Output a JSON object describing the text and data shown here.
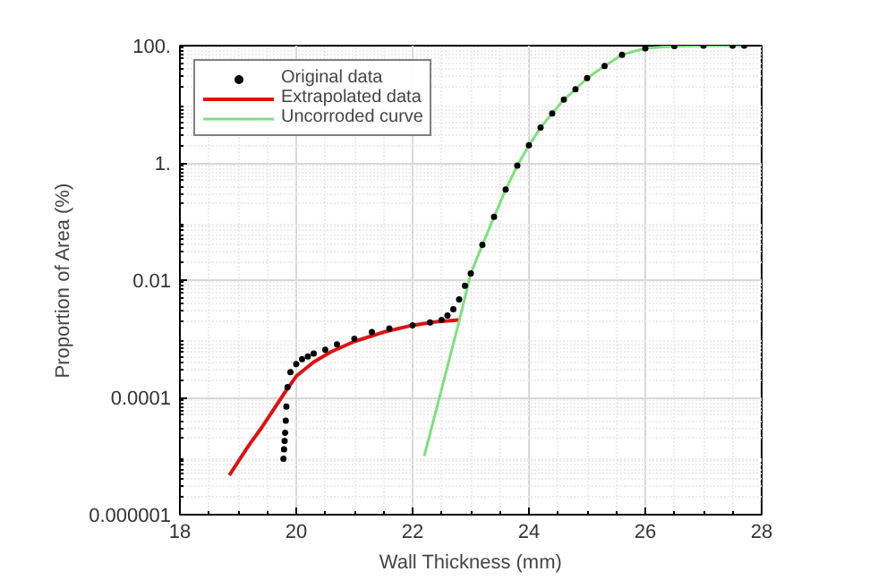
{
  "chart_data": {
    "type": "line",
    "xlabel": "Wall Thickness (mm)",
    "ylabel": "Proportion of Area (%)",
    "log": "y",
    "grid": true,
    "legend": "top left",
    "xlim": [
      18,
      28
    ],
    "xticks": [
      18,
      20,
      22,
      24,
      26,
      28
    ],
    "ylim": [
      1e-06,
      100
    ],
    "yticks": [
      {
        "value": 100,
        "label": "100."
      },
      {
        "value": 1,
        "label": "1."
      },
      0.01,
      0.0001,
      {
        "value": 1e-06,
        "label": "0.000001"
      }
    ],
    "series": [
      {
        "name": "Original data",
        "type": "scatter",
        "marker": "circle",
        "color": "#000000",
        "x": [
          19.78,
          19.79,
          19.8,
          19.81,
          19.82,
          19.83,
          19.85,
          19.9,
          20.0,
          20.1,
          20.2,
          20.3,
          20.5,
          20.7,
          21.0,
          21.3,
          21.6,
          22.0,
          22.3,
          22.5,
          22.6,
          22.7,
          22.8,
          22.9,
          23.0,
          23.2,
          23.4,
          23.6,
          23.8,
          24.0,
          24.2,
          24.4,
          24.6,
          24.8,
          25.0,
          25.3,
          25.6,
          26.0,
          26.5,
          27.0,
          27.5,
          27.7
        ],
        "values": [
          9e-06,
          1.3e-05,
          1.8e-05,
          2.5e-05,
          4e-05,
          7e-05,
          0.00015,
          0.00027,
          0.00037,
          0.00045,
          0.0005,
          0.00056,
          0.00065,
          0.0008,
          0.001,
          0.0013,
          0.0015,
          0.0017,
          0.0019,
          0.0021,
          0.0025,
          0.0032,
          0.0047,
          0.008,
          0.013,
          0.04,
          0.12,
          0.35,
          0.9,
          2,
          4,
          7,
          12,
          18,
          28,
          45,
          70,
          90,
          98,
          100,
          100,
          100
        ]
      },
      {
        "name": "Extrapolated data",
        "color": "#e01010",
        "x": [
          18.85,
          19.0,
          19.2,
          19.4,
          19.6,
          19.8,
          20.0,
          20.3,
          20.6,
          21.0,
          21.5,
          22.0,
          22.4,
          22.8
        ],
        "values": [
          4.7e-06,
          8e-06,
          1.6e-05,
          3e-05,
          6e-05,
          0.00012,
          0.00023,
          0.0004,
          0.0006,
          0.0009,
          0.0013,
          0.0017,
          0.00195,
          0.0021
        ]
      },
      {
        "name": "Uncorroded curve",
        "color": "#7ee07e",
        "x": [
          22.2,
          22.5,
          22.8,
          23.0,
          23.2,
          23.4,
          23.6,
          23.8,
          24.0,
          24.2,
          24.4,
          24.6,
          24.8,
          25.0,
          25.3,
          25.6,
          26.0,
          26.5,
          27.0,
          27.5,
          27.7
        ],
        "values": [
          1e-05,
          0.00014,
          0.002,
          0.013,
          0.04,
          0.12,
          0.35,
          0.9,
          2,
          4,
          7,
          12,
          18,
          28,
          45,
          70,
          90,
          98,
          100,
          100,
          100
        ]
      }
    ]
  }
}
